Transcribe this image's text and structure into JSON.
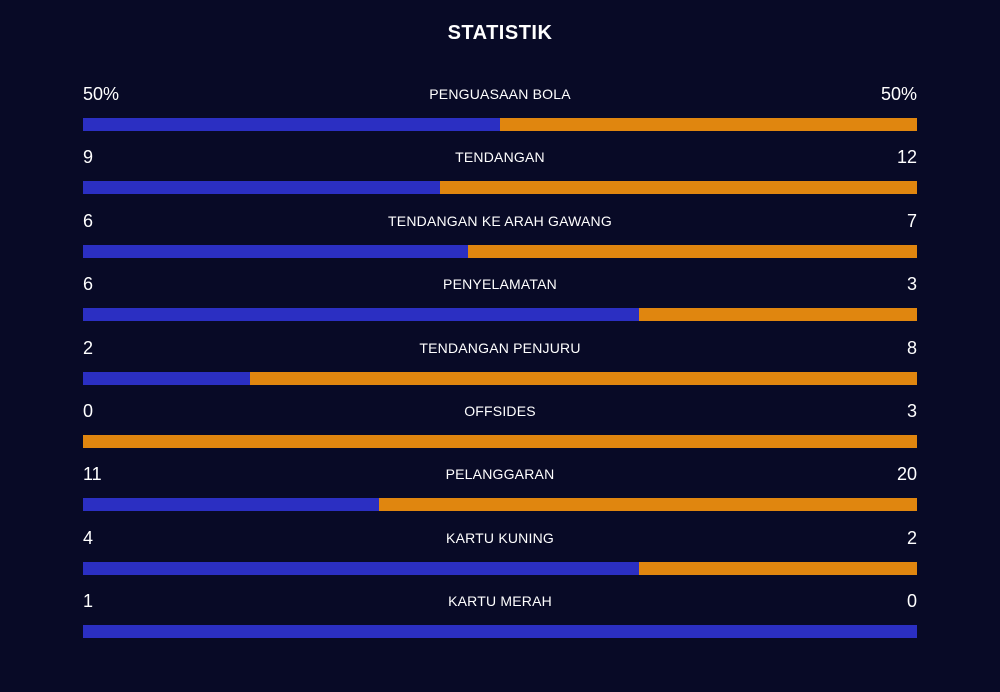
{
  "title": "STATISTIK",
  "colors": {
    "background": "#080a26",
    "home": "#2b2fc2",
    "away": "#e0860f",
    "text": "#ffffff"
  },
  "stats": [
    {
      "label": "PENGUASAAN BOLA",
      "left": "50%",
      "right": "50%",
      "home": 50,
      "away": 50
    },
    {
      "label": "TENDANGAN",
      "left": "9",
      "right": "12",
      "home": 9,
      "away": 12
    },
    {
      "label": "TENDANGAN KE ARAH GAWANG",
      "left": "6",
      "right": "7",
      "home": 6,
      "away": 7
    },
    {
      "label": "PENYELAMATAN",
      "left": "6",
      "right": "3",
      "home": 6,
      "away": 3
    },
    {
      "label": "TENDANGAN PENJURU",
      "left": "2",
      "right": "8",
      "home": 2,
      "away": 8
    },
    {
      "label": "OFFSIDES",
      "left": "0",
      "right": "3",
      "home": 0,
      "away": 3
    },
    {
      "label": "PELANGGARAN",
      "left": "11",
      "right": "20",
      "home": 11,
      "away": 20
    },
    {
      "label": "KARTU KUNING",
      "left": "4",
      "right": "2",
      "home": 4,
      "away": 2
    },
    {
      "label": "KARTU MERAH",
      "left": "1",
      "right": "0",
      "home": 1,
      "away": 0
    }
  ]
}
